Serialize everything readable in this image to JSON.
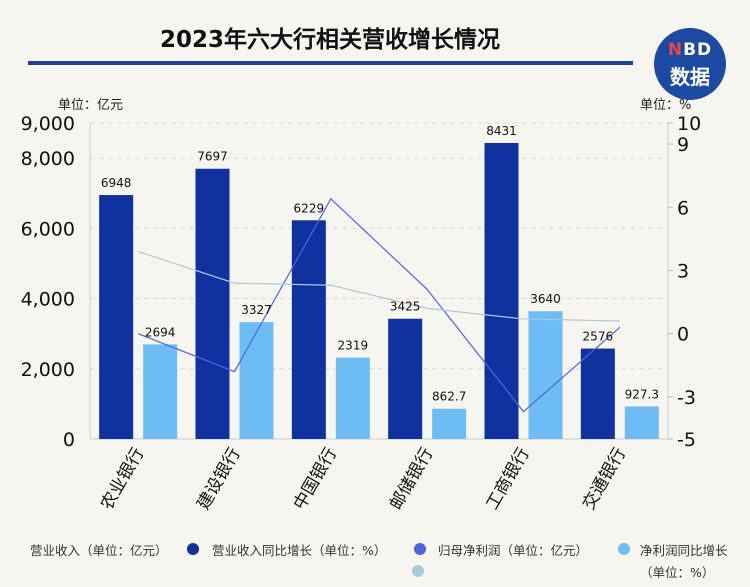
{
  "title": "2023年六大行相关营收增长情况",
  "logo": {
    "top": "NBD",
    "bottom": "数据"
  },
  "unit_left": "单位：亿元",
  "unit_right": "单位：%",
  "chart_data": {
    "type": "bar",
    "title": "2023年六大行相关营收增长情况",
    "categories": [
      "农业银行",
      "建设银行",
      "中国银行",
      "邮储银行",
      "工商银行",
      "交通银行"
    ],
    "ylim_left": [
      0,
      9000
    ],
    "yticks_left": [
      "0",
      "2,000",
      "4,000",
      "6,000",
      "8,000",
      "9,000"
    ],
    "ylim_right": [
      -5,
      10
    ],
    "yticks_right": [
      "-5",
      "-3",
      "0",
      "3",
      "6",
      "9",
      "10"
    ],
    "series": [
      {
        "name": "营业收入（单位：亿元）",
        "type": "bar",
        "axis": "left",
        "color": "#0f32a0",
        "values": [
          6948,
          7697,
          6229,
          3425,
          8431,
          2576
        ],
        "labels": [
          "6948",
          "7697",
          "6229",
          "3425",
          "8431",
          "2576"
        ]
      },
      {
        "name": "营业收入同比增长（单位：%）",
        "type": "line",
        "axis": "right",
        "color": "#4a68de",
        "values": [
          0.0,
          -1.8,
          6.4,
          2.1,
          -3.7,
          0.3
        ]
      },
      {
        "name": "归母净利润（单位：亿元）",
        "type": "bar",
        "axis": "left",
        "color": "#6dbdf4",
        "values": [
          2694,
          3327,
          2319,
          862.7,
          3640,
          927.3
        ],
        "labels": [
          "2694",
          "3327",
          "2319",
          "862.7",
          "3640",
          "927.3"
        ]
      },
      {
        "name": "净利润同比增长（单位：%）",
        "type": "line",
        "axis": "right",
        "color": "#a8ccd8",
        "values": [
          3.9,
          2.4,
          2.3,
          1.2,
          0.7,
          0.6
        ]
      }
    ]
  },
  "legend": [
    {
      "text": "营业收入（单位：亿元）",
      "color": "#0f32a0"
    },
    {
      "text": "营业收入同比增长（单位：%）",
      "color": "#4a68de"
    },
    {
      "text": "归母净利润（单位：亿元）",
      "color": "#6dbdf4"
    },
    {
      "text": "净利润同比增长（单位：%）",
      "color": "#a8ccd8"
    }
  ]
}
